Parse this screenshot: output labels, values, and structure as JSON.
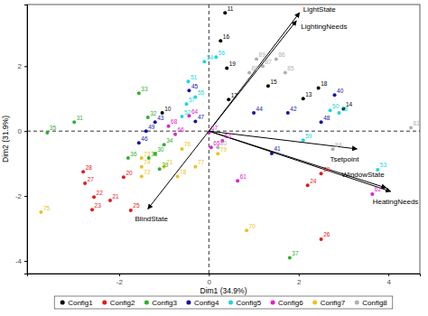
{
  "chart_data": {
    "type": "scatter",
    "x_label": "Dim1 (34.9%)",
    "y_label": "Dim2 (31.9%)",
    "xlim": [
      -4.05,
      4.7
    ],
    "ylim": [
      -4.39,
      3.9
    ],
    "xticks": [
      -2,
      0,
      2,
      4
    ],
    "yticks": [
      -4,
      -2,
      0,
      2
    ],
    "reference_lines": {
      "x": 0,
      "y": 0
    },
    "legend": "bottom",
    "series": [
      {
        "name": "Config1",
        "color": "#000000",
        "point_labels": [
          "11",
          "16",
          "19",
          "15",
          "17",
          "18",
          "14",
          "10",
          "13"
        ],
        "x": [
          0.36,
          0.26,
          0.4,
          1.32,
          0.44,
          2.44,
          3.0,
          -1.04,
          2.1
        ],
        "values": [
          3.64,
          2.78,
          1.94,
          1.39,
          0.97,
          1.33,
          0.69,
          0.56,
          1.0
        ]
      },
      {
        "name": "Config2",
        "color": "#e41a1c",
        "point_labels": [
          "28",
          "27",
          "22",
          "23",
          "21",
          "25",
          "20",
          "29",
          "24",
          "26"
        ],
        "x": [
          -2.8,
          -2.76,
          -2.56,
          -2.6,
          -2.2,
          -1.74,
          -1.9,
          2.5,
          2.2,
          2.5
        ],
        "values": [
          -1.25,
          -1.61,
          -2.03,
          -2.42,
          -2.14,
          -2.44,
          -1.42,
          -1.31,
          -1.67,
          -3.33
        ]
      },
      {
        "name": "Config3",
        "color": "#33b02c",
        "point_labels": [
          "33",
          "31",
          "35",
          "32",
          "36",
          "38",
          "39",
          "34",
          "30",
          "37"
        ],
        "x": [
          -1.56,
          -3.0,
          -3.6,
          -1.36,
          -1.8,
          -1.34,
          -1.1,
          -1.0,
          -1.2,
          1.8
        ],
        "values": [
          1.17,
          0.28,
          -0.05,
          0.42,
          -0.83,
          -0.83,
          -1.17,
          -0.42,
          -0.7,
          -3.9
        ]
      },
      {
        "name": "Config4",
        "color": "#1515a0",
        "point_labels": [
          "45",
          "43",
          "46",
          "44",
          "40",
          "42",
          "48",
          "41",
          "47",
          "49"
        ],
        "x": [
          -0.44,
          -1.2,
          -1.56,
          1.0,
          2.8,
          1.76,
          2.5,
          1.4,
          -0.3,
          -1.4
        ],
        "values": [
          1.25,
          0.28,
          -0.36,
          0.56,
          1.11,
          0.56,
          0.28,
          -0.69,
          0.3,
          0.0
        ]
      },
      {
        "name": "Config5",
        "color": "#1dd6e0",
        "point_labels": [
          "54",
          "56",
          "51",
          "57",
          "55",
          "52",
          "53",
          "59",
          "58",
          "50"
        ],
        "x": [
          -0.1,
          0.16,
          -0.46,
          -0.5,
          -0.3,
          -0.6,
          3.76,
          2.1,
          2.9,
          2.7
        ],
        "values": [
          2.14,
          2.28,
          1.53,
          0.83,
          1.05,
          0.45,
          -1.19,
          -0.28,
          0.56,
          0.64
        ]
      },
      {
        "name": "Config6",
        "color": "#e020c8",
        "point_labels": [
          "64",
          "62",
          "61",
          "65",
          "67",
          "63",
          "66",
          "68"
        ],
        "x": [
          -0.44,
          3.64,
          0.64,
          0.05,
          0.0,
          0.3,
          -0.75,
          -0.9
        ],
        "values": [
          0.47,
          -1.94,
          -1.53,
          -0.5,
          -0.05,
          -0.3,
          -0.1,
          0.15
        ]
      },
      {
        "name": "Config7",
        "color": "#f0c020",
        "point_labels": [
          "75",
          "73",
          "74",
          "71",
          "72",
          "70",
          "79",
          "76",
          "77",
          "78"
        ],
        "x": [
          -3.74,
          -1.5,
          -1.5,
          -1.0,
          -1.5,
          0.84,
          0.2,
          -0.6,
          -0.3,
          -0.7
        ],
        "values": [
          -2.5,
          -0.83,
          -1.1,
          -1.1,
          -1.4,
          -3.06,
          -0.7,
          -0.55,
          -1.1,
          -1.4
        ]
      },
      {
        "name": "Config8",
        "color": "#b0b0b0",
        "point_labels": [
          "89",
          "86",
          "87",
          "88",
          "85",
          "84",
          "80",
          "83"
        ],
        "x": [
          1.06,
          1.5,
          1.2,
          0.9,
          1.7,
          2.76,
          0.2,
          4.5
        ],
        "values": [
          2.22,
          2.22,
          2.0,
          1.8,
          1.8,
          -0.56,
          -0.5,
          0.1
        ]
      }
    ],
    "arrows": [
      {
        "name": "LightState",
        "x": 2.02,
        "y": 3.65
      },
      {
        "name": "LightingNeeds",
        "x": 1.95,
        "y": 3.4
      },
      {
        "name": "BlindState",
        "x": -1.36,
        "y": -2.4
      },
      {
        "name": "Tsetpoint",
        "x": 3.3,
        "y": -0.55
      },
      {
        "name": "WindowState",
        "x": 3.95,
        "y": -1.75
      },
      {
        "name": "HeatingNeeds",
        "x": 4.05,
        "y": -1.86
      }
    ]
  }
}
